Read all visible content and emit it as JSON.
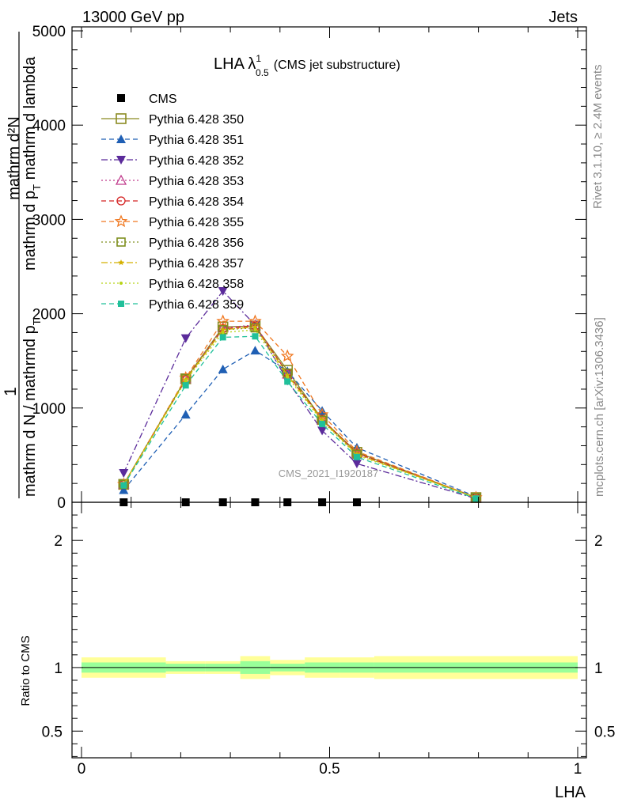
{
  "header": {
    "left": "13000 GeV pp",
    "right": "Jets"
  },
  "side": {
    "rivet": "Rivet 3.1.10, ≥ 2.4M events",
    "mcplots": "mcplots.cern.ch [arXiv:1306.3436]"
  },
  "chart_data": [
    {
      "type": "line",
      "title": "LHA λ",
      "title_sup": "1",
      "title_sub": "0.5",
      "title_suffix": "(CMS jet substructure)",
      "watermark": "CMS_2021_I1920187",
      "ylabel_top": "1",
      "ylabel_num": "mathrm d²N",
      "ylabel_frac": "mathrm d N / mathrmd p",
      "ylabel_frac_sub": "T",
      "ylabel_den": "mathrm d p",
      "ylabel_den_sub": "T",
      "ylabel_den_suffix": " mathrm d lambda",
      "xlim": [
        0,
        1
      ],
      "ylim": [
        0,
        5000
      ],
      "yticks": [
        0,
        1000,
        2000,
        3000,
        4000,
        5000
      ],
      "ytick_labels": [
        "0",
        "1000",
        "2000",
        "3000",
        "4000",
        "5000"
      ],
      "legend_position": "top-left",
      "series": [
        {
          "name": "CMS",
          "color": "#000000",
          "marker": "square-filled",
          "dash": "none",
          "x": [
            0.085,
            0.21,
            0.285,
            0.35,
            0.415,
            0.485,
            0.555
          ],
          "y": [
            0,
            0,
            0,
            0,
            0,
            0,
            0
          ]
        },
        {
          "name": "Pythia 6.428 350",
          "color": "#8b8b22",
          "marker": "square-open",
          "dash": "solid",
          "x": [
            0.085,
            0.21,
            0.285,
            0.35,
            0.415,
            0.485,
            0.555,
            0.795
          ],
          "y": [
            190,
            1310,
            1860,
            1870,
            1400,
            880,
            530,
            50
          ]
        },
        {
          "name": "Pythia 6.428 351",
          "color": "#1f5fb4",
          "marker": "triangle-up-filled",
          "dash": "dashed",
          "x": [
            0.085,
            0.21,
            0.285,
            0.35,
            0.415,
            0.485,
            0.555,
            0.795
          ],
          "y": [
            130,
            930,
            1410,
            1610,
            1390,
            970,
            580,
            60
          ]
        },
        {
          "name": "Pythia 6.428 352",
          "color": "#5b2b9b",
          "marker": "triangle-down-filled",
          "dash": "dashdot",
          "x": [
            0.085,
            0.21,
            0.285,
            0.35,
            0.415,
            0.485,
            0.555,
            0.795
          ],
          "y": [
            310,
            1740,
            2240,
            1880,
            1290,
            760,
            410,
            40
          ]
        },
        {
          "name": "Pythia 6.428 353",
          "color": "#c03a8c",
          "marker": "triangle-up-open",
          "dash": "dotted",
          "x": [
            0.085,
            0.21,
            0.285,
            0.35,
            0.415,
            0.485,
            0.555,
            0.795
          ],
          "y": [
            190,
            1310,
            1850,
            1880,
            1360,
            870,
            520,
            50
          ]
        },
        {
          "name": "Pythia 6.428 354",
          "color": "#d42020",
          "marker": "circle-open",
          "dash": "dashed",
          "x": [
            0.085,
            0.21,
            0.285,
            0.35,
            0.415,
            0.485,
            0.555,
            0.795
          ],
          "y": [
            190,
            1300,
            1840,
            1870,
            1370,
            880,
            520,
            50
          ]
        },
        {
          "name": "Pythia 6.428 355",
          "color": "#f07820",
          "marker": "star-open",
          "dash": "dashed",
          "x": [
            0.085,
            0.21,
            0.285,
            0.35,
            0.415,
            0.485,
            0.555,
            0.795
          ],
          "y": [
            190,
            1320,
            1920,
            1920,
            1550,
            930,
            540,
            50
          ]
        },
        {
          "name": "Pythia 6.428 356",
          "color": "#7f8f1f",
          "marker": "square-open-small",
          "dash": "dotted",
          "x": [
            0.085,
            0.21,
            0.285,
            0.35,
            0.415,
            0.485,
            0.555,
            0.795
          ],
          "y": [
            190,
            1310,
            1830,
            1850,
            1370,
            870,
            510,
            50
          ]
        },
        {
          "name": "Pythia 6.428 357",
          "color": "#d4b000",
          "marker": "star-small",
          "dash": "dashdot",
          "x": [
            0.085,
            0.21,
            0.285,
            0.35,
            0.415,
            0.485,
            0.555,
            0.795
          ],
          "y": [
            190,
            1300,
            1830,
            1860,
            1350,
            870,
            510,
            50
          ]
        },
        {
          "name": "Pythia 6.428 358",
          "color": "#b8d418",
          "marker": "dot",
          "dash": "dotted",
          "x": [
            0.085,
            0.21,
            0.285,
            0.35,
            0.415,
            0.485,
            0.555,
            0.795
          ],
          "y": [
            180,
            1290,
            1800,
            1830,
            1330,
            860,
            500,
            50
          ]
        },
        {
          "name": "Pythia 6.428 359",
          "color": "#20c09a",
          "marker": "square-filled-small",
          "dash": "dashed",
          "x": [
            0.085,
            0.21,
            0.285,
            0.35,
            0.415,
            0.485,
            0.555,
            0.795
          ],
          "y": [
            180,
            1240,
            1750,
            1760,
            1280,
            830,
            480,
            40
          ]
        }
      ]
    },
    {
      "type": "area",
      "ylabel": "Ratio to CMS",
      "xlabel": "LHA",
      "xlim": [
        0,
        1
      ],
      "ylim": [
        0.29,
        2.3
      ],
      "xticks": [
        0,
        0.5,
        1
      ],
      "xtick_labels": [
        "0",
        "0.5",
        "1"
      ],
      "yticks": [
        0.5,
        1,
        2
      ],
      "ytick_labels": [
        "0.5",
        "1",
        "2"
      ],
      "reference_line": 1,
      "bins": [
        {
          "x0": 0.0,
          "x1": 0.17,
          "inner": [
            0.96,
            1.04
          ],
          "outer": [
            0.92,
            1.08
          ]
        },
        {
          "x0": 0.17,
          "x1": 0.25,
          "inner": [
            0.97,
            1.03
          ],
          "outer": [
            0.95,
            1.05
          ]
        },
        {
          "x0": 0.25,
          "x1": 0.32,
          "inner": [
            0.97,
            1.03
          ],
          "outer": [
            0.95,
            1.05
          ]
        },
        {
          "x0": 0.32,
          "x1": 0.38,
          "inner": [
            0.95,
            1.05
          ],
          "outer": [
            0.91,
            1.09
          ]
        },
        {
          "x0": 0.38,
          "x1": 0.45,
          "inner": [
            0.97,
            1.03
          ],
          "outer": [
            0.94,
            1.06
          ]
        },
        {
          "x0": 0.45,
          "x1": 0.52,
          "inner": [
            0.96,
            1.04
          ],
          "outer": [
            0.92,
            1.08
          ]
        },
        {
          "x0": 0.52,
          "x1": 0.59,
          "inner": [
            0.96,
            1.04
          ],
          "outer": [
            0.92,
            1.08
          ]
        },
        {
          "x0": 0.59,
          "x1": 1.0,
          "inner": [
            0.96,
            1.04
          ],
          "outer": [
            0.91,
            1.09
          ]
        }
      ]
    }
  ]
}
